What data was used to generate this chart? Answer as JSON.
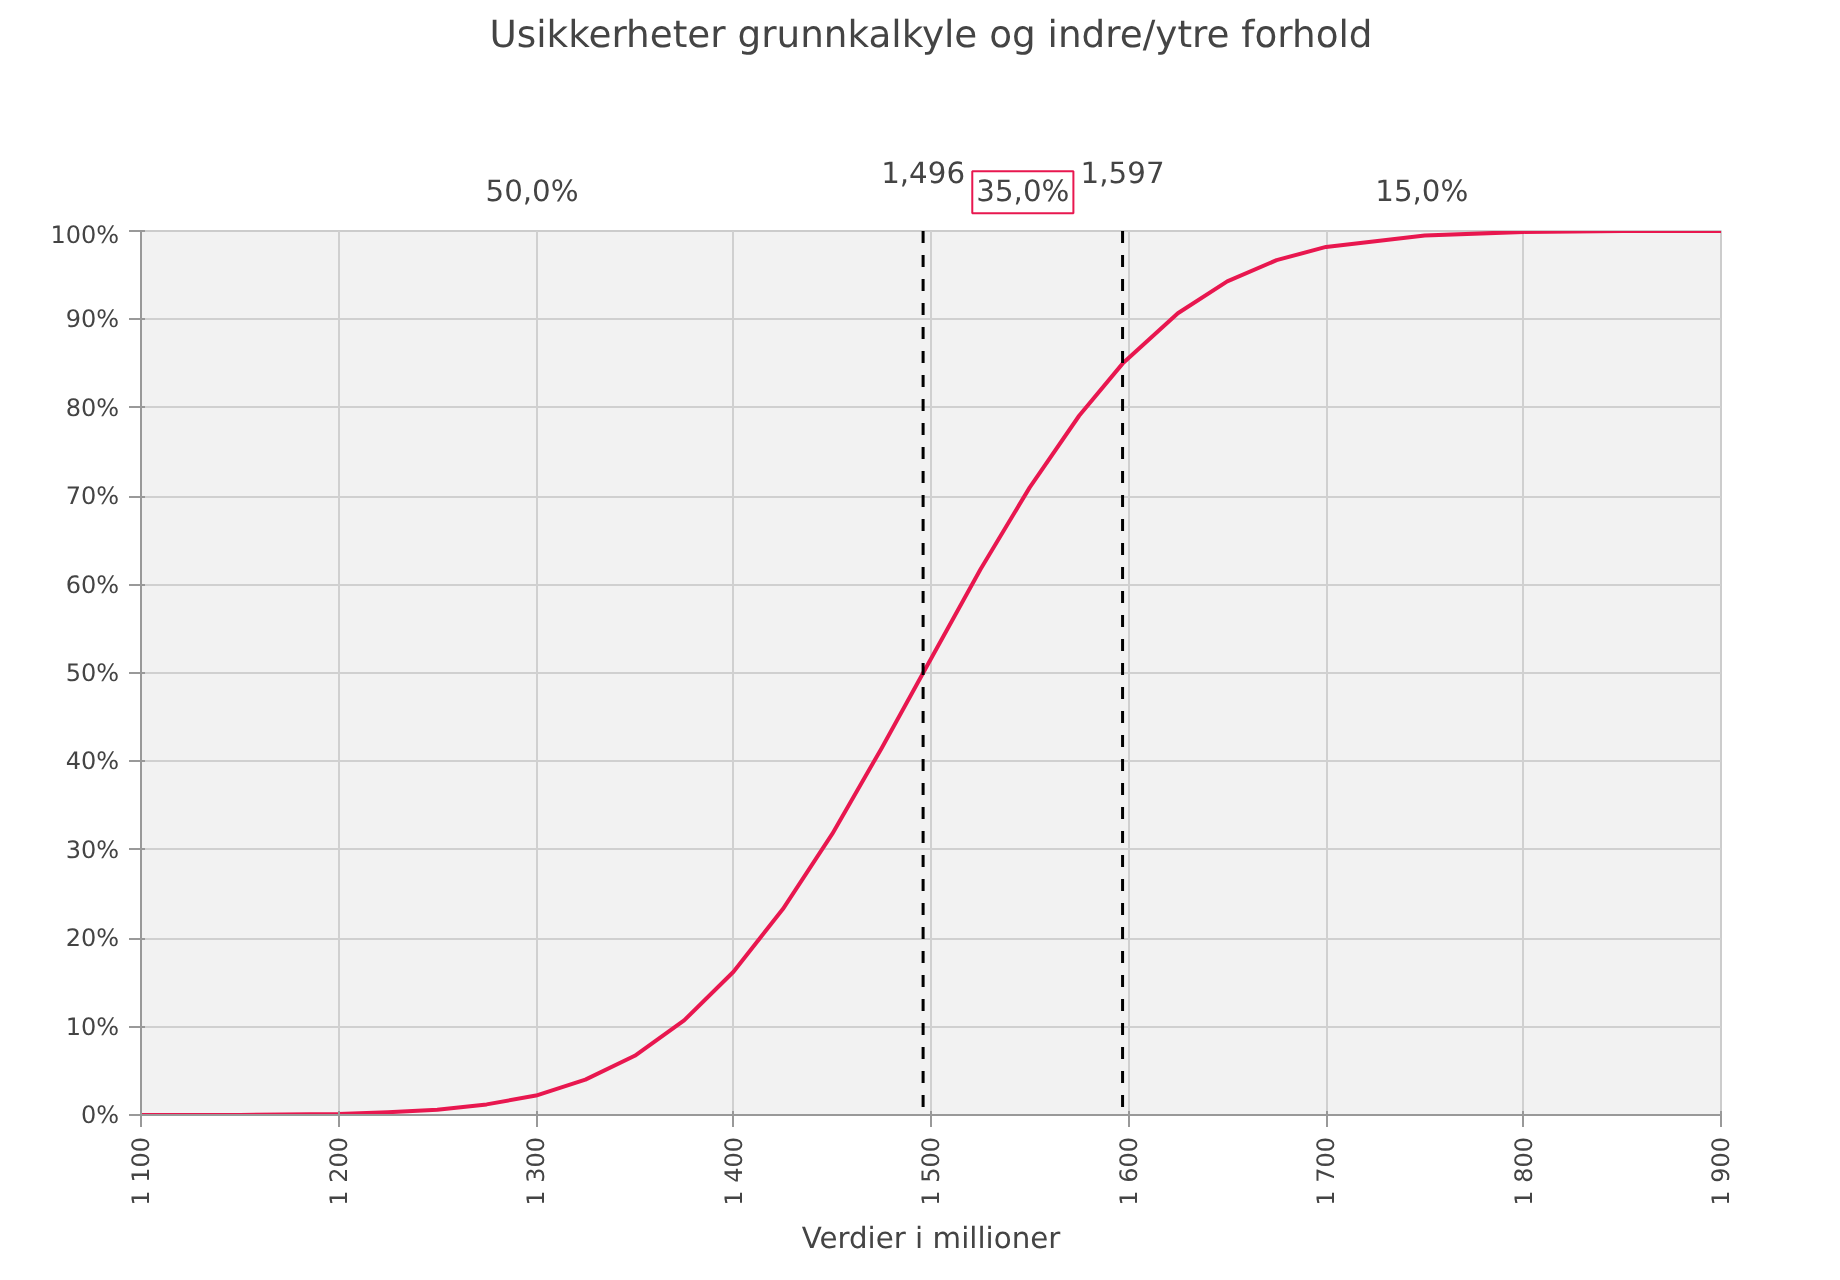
{
  "chart_data": {
    "type": "line",
    "title": "Usikkerheter grunnkalkyle og indre/ytre forhold",
    "xlabel": "Verdier i millioner",
    "series": [
      {
        "color": "#e8174f",
        "x": [
          1100,
          1150,
          1200,
          1225,
          1250,
          1275,
          1300,
          1325,
          1350,
          1375,
          1400,
          1425,
          1450,
          1475,
          1496,
          1525,
          1550,
          1575,
          1597,
          1625,
          1650,
          1675,
          1700,
          1750,
          1800,
          1850,
          1900
        ],
        "values": [
          0,
          0,
          0.1,
          0.3,
          0.6,
          1.2,
          2.2,
          4.0,
          6.7,
          10.7,
          16.2,
          23.3,
          31.8,
          41.5,
          50,
          61.7,
          71.0,
          79.1,
          85,
          90.7,
          94.3,
          96.7,
          98.2,
          99.5,
          99.9,
          100,
          100
        ]
      }
    ],
    "xlim": [
      1100,
      1900
    ],
    "xticks": [
      {
        "value": 1100,
        "label": "1 100"
      },
      {
        "value": 1200,
        "label": "1 200"
      },
      {
        "value": 1300,
        "label": "1 300"
      },
      {
        "value": 1400,
        "label": "1 400"
      },
      {
        "value": 1500,
        "label": "1 500"
      },
      {
        "value": 1600,
        "label": "1 600"
      },
      {
        "value": 1700,
        "label": "1 700"
      },
      {
        "value": 1800,
        "label": "1 800"
      },
      {
        "value": 1900,
        "label": "1 900"
      }
    ],
    "ylim": [
      0,
      100
    ],
    "yticks": [
      {
        "value": 0,
        "label": "0%"
      },
      {
        "value": 10,
        "label": "10%"
      },
      {
        "value": 20,
        "label": "20%"
      },
      {
        "value": 30,
        "label": "30%"
      },
      {
        "value": 40,
        "label": "40%"
      },
      {
        "value": 50,
        "label": "50%"
      },
      {
        "value": 60,
        "label": "60%"
      },
      {
        "value": 70,
        "label": "70%"
      },
      {
        "value": 80,
        "label": "80%"
      },
      {
        "value": 90,
        "label": "90%"
      },
      {
        "value": 100,
        "label": "100%"
      }
    ],
    "ref_lines": [
      {
        "axis": "x",
        "value": 1496,
        "label": "1,496",
        "color": "#000000",
        "line_style": "dashed"
      },
      {
        "axis": "x",
        "value": 1597,
        "label": "1,597",
        "color": "#000000",
        "line_style": "dashed"
      }
    ],
    "annotations": [
      "50,0%",
      "35,0%",
      "15,0%"
    ],
    "grid": true,
    "marker": "none",
    "line_style": "solid"
  }
}
